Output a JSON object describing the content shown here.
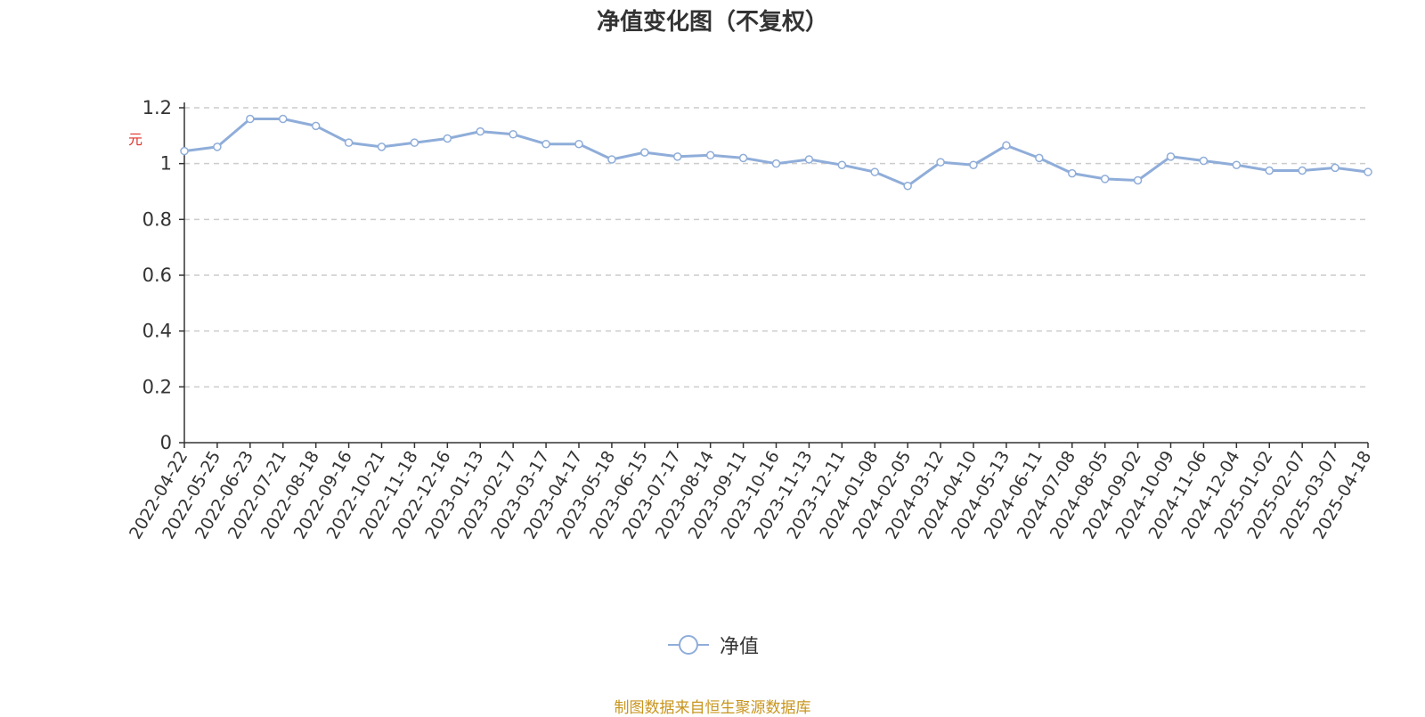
{
  "chart_data": {
    "type": "line",
    "title": "净值变化图（不复权）",
    "ylabel": "元",
    "ylim": [
      0,
      1.2
    ],
    "yticks": [
      "0",
      "0.2",
      "0.4",
      "0.6",
      "0.8",
      "1",
      "1.2"
    ],
    "grid": true,
    "legend_position": "bottom-center",
    "x_tick_labels": [
      "2022-04-22",
      "2022-05-25",
      "2022-06-23",
      "2022-07-21",
      "2022-08-18",
      "2022-09-16",
      "2022-10-21",
      "2022-11-18",
      "2022-12-16",
      "2023-01-13",
      "2023-02-17",
      "2023-03-17",
      "2023-04-17",
      "2023-05-18",
      "2023-06-15",
      "2023-07-17",
      "2023-08-14",
      "2023-09-11",
      "2023-10-16",
      "2023-11-13",
      "2023-12-11",
      "2024-01-08",
      "2024-02-05",
      "2024-03-12",
      "2024-04-10",
      "2024-05-13",
      "2024-06-11",
      "2024-07-08",
      "2024-08-05",
      "2024-09-02",
      "2024-10-09",
      "2024-11-06",
      "2024-12-04",
      "2025-01-02",
      "2025-02-07",
      "2025-03-07",
      "2025-04-18"
    ],
    "series": [
      {
        "name": "净值",
        "color": "#8fadd9",
        "x": [
          "2022-04-22",
          "2022-05-25",
          "2022-06-23",
          "2022-07-21",
          "2022-08-18",
          "2022-09-16",
          "2022-10-21",
          "2022-11-18",
          "2022-12-16",
          "2023-01-13",
          "2023-02-17",
          "2023-03-17",
          "2023-04-17",
          "2023-05-18",
          "2023-06-15",
          "2023-07-17",
          "2023-08-14",
          "2023-09-11",
          "2023-10-16",
          "2023-11-13",
          "2023-12-11",
          "2024-01-08",
          "2024-02-05",
          "2024-03-12",
          "2024-04-10",
          "2024-05-13",
          "2024-06-11",
          "2024-07-08",
          "2024-08-05",
          "2024-09-02",
          "2024-10-09",
          "2024-11-06",
          "2024-12-04",
          "2025-01-02",
          "2025-02-07",
          "2025-03-07",
          "2025-04-18"
        ],
        "values": [
          1.045,
          1.06,
          1.16,
          1.16,
          1.135,
          1.075,
          1.06,
          1.075,
          1.09,
          1.115,
          1.105,
          1.07,
          1.07,
          1.015,
          1.04,
          1.025,
          1.03,
          1.02,
          1.0,
          1.015,
          0.995,
          0.97,
          0.92,
          1.005,
          0.995,
          1.065,
          1.02,
          0.965,
          0.945,
          0.94,
          1.025,
          1.01,
          0.995,
          0.975,
          0.975,
          0.985,
          0.97
        ]
      }
    ]
  },
  "source_note": "制图数据来自恒生聚源数据库",
  "legend": {
    "label": "净值",
    "icon": "circle-line-icon"
  }
}
